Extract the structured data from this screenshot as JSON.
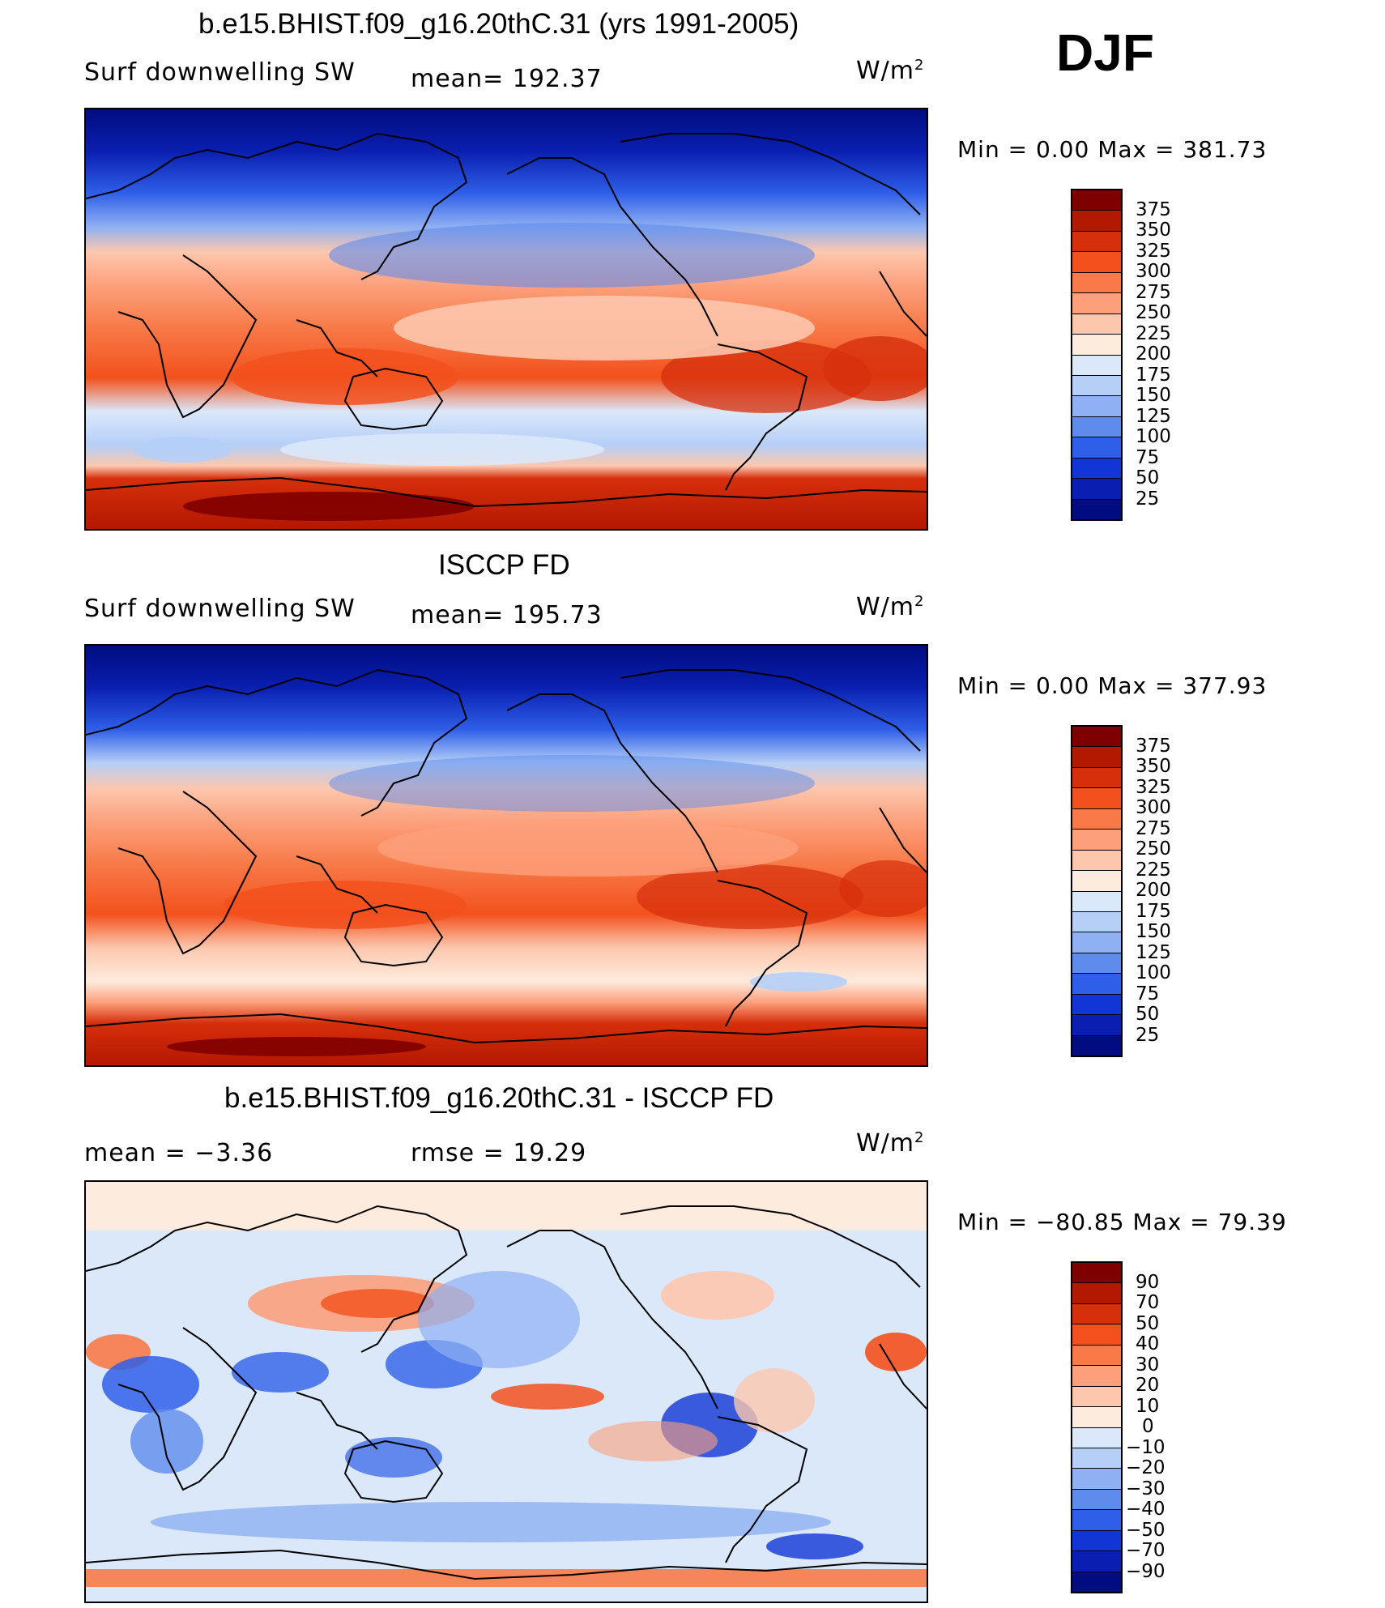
{
  "season": "DJF",
  "panels": [
    {
      "title": "b.e15.BHIST.f09_g16.20thC.31 (yrs 1991-2005)",
      "variable": "Surf downwelling SW",
      "stat1": "mean=  192.37",
      "stat2": "",
      "units_base": "W/m",
      "units_exp": "2",
      "minmax": "Min  =     0.00  Max  =  381.73",
      "colorbar_labels": [
        "375",
        "350",
        "325",
        "300",
        "275",
        "250",
        "225",
        "200",
        "175",
        "150",
        "125",
        "100",
        "75",
        "50",
        "25"
      ]
    },
    {
      "title": "ISCCP FD",
      "variable": "Surf downwelling SW",
      "stat1": "mean=  195.73",
      "stat2": "",
      "units_base": "W/m",
      "units_exp": "2",
      "minmax": "Min  =     0.00  Max  =  377.93",
      "colorbar_labels": [
        "375",
        "350",
        "325",
        "300",
        "275",
        "250",
        "225",
        "200",
        "175",
        "150",
        "125",
        "100",
        "75",
        "50",
        "25"
      ]
    },
    {
      "title": "b.e15.BHIST.f09_g16.20thC.31 - ISCCP FD",
      "variable": "",
      "stat1": "mean  =    −3.36",
      "stat2": "rmse  =    19.29",
      "units_base": "W/m",
      "units_exp": "2",
      "minmax": "Min  = −80.85  Max  =    79.39",
      "colorbar_labels": [
        "90",
        "70",
        "50",
        "40",
        "30",
        "20",
        "10",
        "0",
        "−10",
        "−20",
        "−30",
        "−40",
        "−50",
        "−70",
        "−90"
      ]
    }
  ],
  "colors": {
    "scale": [
      "#7f0000",
      "#b31800",
      "#d62f0c",
      "#f2511d",
      "#f87a48",
      "#fca07c",
      "#fdc7ae",
      "#fdebde",
      "#dbe8fa",
      "#b5cff7",
      "#8fb0f2",
      "#5e8bec",
      "#2f5fe8",
      "#1236d6",
      "#0a1fb0",
      "#000c80"
    ]
  }
}
